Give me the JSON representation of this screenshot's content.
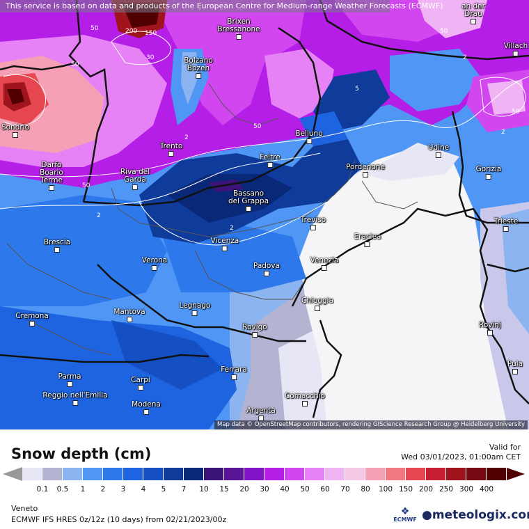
{
  "notice": "This service is based on data and products of the European Centre for Medium-range Weather Forecasts (ECMWF)",
  "attribution": "Map data © OpenStreetMap contributors, rendering GIScience Research Group @ Heidelberg University",
  "title": "Snow depth (cm)",
  "valid_label": "Valid for",
  "valid_time": "Wed 03/01/2023, 01:00am CET",
  "region": "Veneto",
  "model": "ECMWF IFS HRES 0z/12z (10 days) from  02/21/2023/00z",
  "brand_ecmwf": "ECMWF",
  "brand_logo": "meteologix.com",
  "legend": {
    "ticks": [
      "0.1",
      "0.5",
      "1",
      "2",
      "3",
      "4",
      "5",
      "7",
      "10",
      "15",
      "20",
      "30",
      "40",
      "50",
      "60",
      "70",
      "80",
      "100",
      "150",
      "200",
      "250",
      "300",
      "400"
    ],
    "colors": [
      "#e6e6f5",
      "#b4b4d2",
      "#8cb4f0",
      "#5096f5",
      "#2d78eb",
      "#1e64e1",
      "#1450c3",
      "#0f3c9b",
      "#0a2878",
      "#3c1478",
      "#5a1496",
      "#8214c8",
      "#b41ee6",
      "#d246f0",
      "#e682f5",
      "#f0b4f5",
      "#f5c8e6",
      "#f5a0b4",
      "#f07882",
      "#e64650",
      "#c81e32",
      "#a0141e",
      "#780a14",
      "#500000"
    ]
  },
  "cities": [
    {
      "name": "Brixen"
    },
    {
      "name": "Bressanone"
    },
    {
      "name": "Bolzano"
    },
    {
      "name": "Bozen"
    },
    {
      "name": "Sondrio"
    },
    {
      "name": "Trento"
    },
    {
      "name": "Darfo"
    },
    {
      "name": "Boario"
    },
    {
      "name": "Terme"
    },
    {
      "name": "Riva del"
    },
    {
      "name": "Garda"
    },
    {
      "name": "Belluno"
    },
    {
      "name": "Feltre"
    },
    {
      "name": "Bassano"
    },
    {
      "name": "del Grappa"
    },
    {
      "name": "Udine"
    },
    {
      "name": "Pordenone"
    },
    {
      "name": "Gorizia"
    },
    {
      "name": "Treviso"
    },
    {
      "name": "Trieste"
    },
    {
      "name": "Eraclea"
    },
    {
      "name": "Brescia"
    },
    {
      "name": "Vicenza"
    },
    {
      "name": "Verona"
    },
    {
      "name": "Padova"
    },
    {
      "name": "Venezia"
    },
    {
      "name": "Chioggia"
    },
    {
      "name": "Cremona"
    },
    {
      "name": "Mantova"
    },
    {
      "name": "Legnago"
    },
    {
      "name": "Rovigo"
    },
    {
      "name": "Rovinj"
    },
    {
      "name": "Pula"
    },
    {
      "name": "Ferrara"
    },
    {
      "name": "Parma"
    },
    {
      "name": "Carpi"
    },
    {
      "name": "Reggio nell'Emilia"
    },
    {
      "name": "Modena"
    },
    {
      "name": "Comacchio"
    },
    {
      "name": "Argenta"
    },
    {
      "name": "Villach"
    },
    {
      "name": "an der"
    },
    {
      "name": "Drau"
    }
  ],
  "contour_labels": [
    "50",
    "200",
    "150",
    "50",
    "30",
    "50",
    "2",
    "2",
    "2",
    "5",
    "50",
    "50",
    "2",
    "50",
    "2",
    "2"
  ]
}
